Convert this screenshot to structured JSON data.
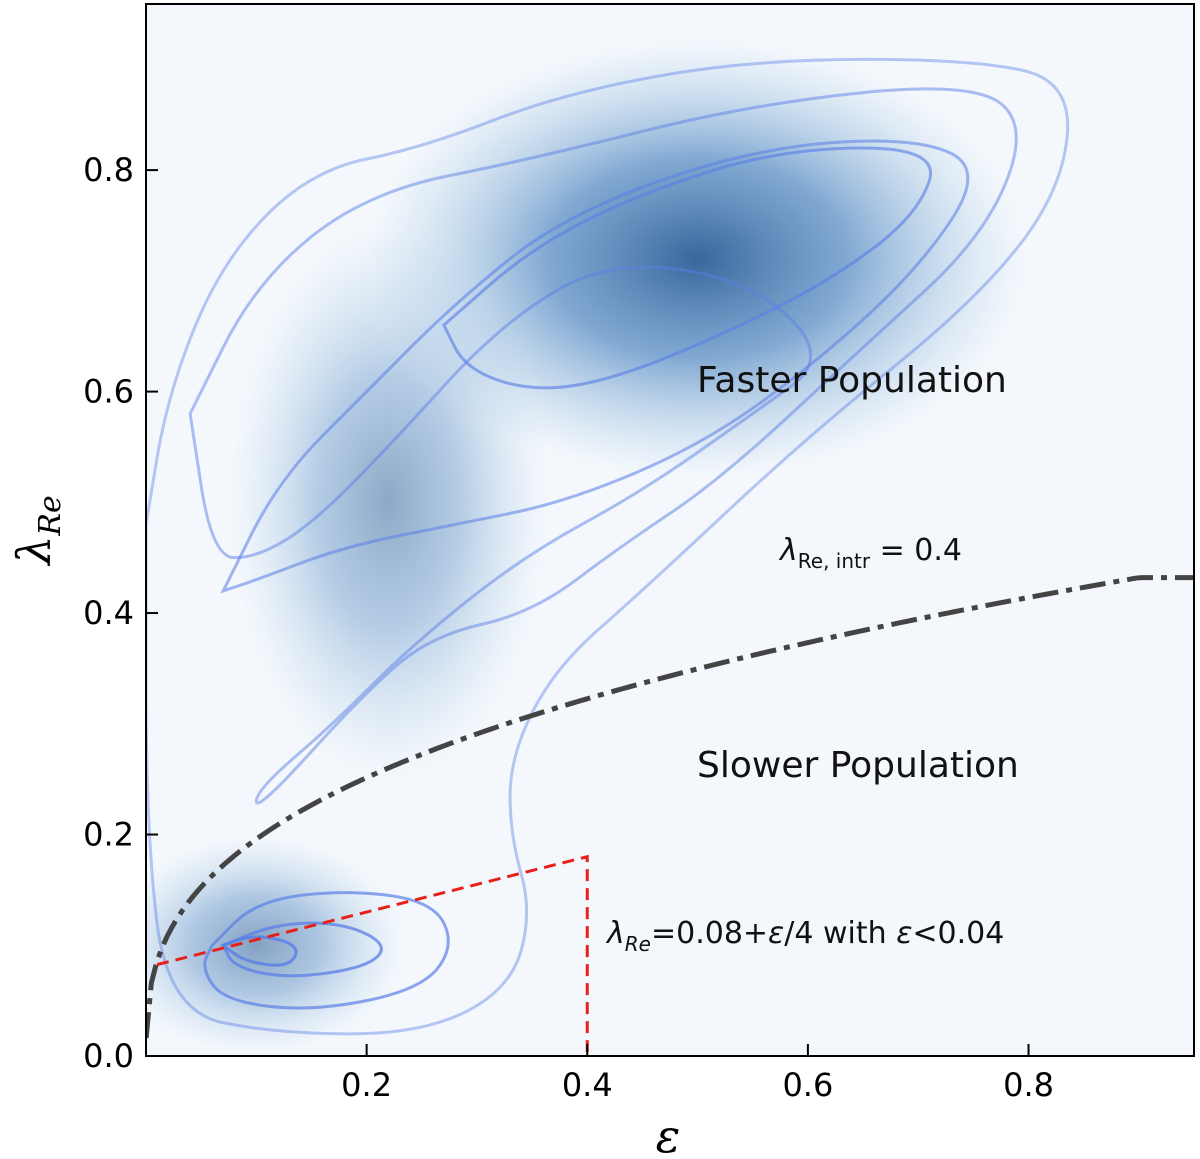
{
  "chart_data": {
    "type": "density",
    "xlabel": "ε",
    "ylabel_main": "λ",
    "ylabel_sub": "Re",
    "xlim": [
      0,
      0.95
    ],
    "ylim": [
      0,
      0.95
    ],
    "x_ticks": [
      0.2,
      0.4,
      0.6,
      0.8
    ],
    "x_tick_labels": [
      "0.2",
      "0.4",
      "0.6",
      "0.8"
    ],
    "y_ticks": [
      0.0,
      0.2,
      0.4,
      0.6,
      0.8
    ],
    "y_tick_labels": [
      "0.0",
      "0.2",
      "0.4",
      "0.6",
      "0.8"
    ],
    "density_peaks": [
      {
        "x": 0.5,
        "y": 0.72,
        "weight": 1.0
      },
      {
        "x": 0.22,
        "y": 0.5,
        "weight": 0.55
      },
      {
        "x": 0.1,
        "y": 0.1,
        "weight": 0.6
      }
    ],
    "contours": [
      {
        "level": 1,
        "points": [
          [
            0.0,
            0.48
          ],
          [
            0.02,
            0.6
          ],
          [
            0.07,
            0.72
          ],
          [
            0.15,
            0.8
          ],
          [
            0.25,
            0.82
          ],
          [
            0.38,
            0.87
          ],
          [
            0.55,
            0.9
          ],
          [
            0.75,
            0.9
          ],
          [
            0.84,
            0.88
          ],
          [
            0.83,
            0.78
          ],
          [
            0.75,
            0.68
          ],
          [
            0.6,
            0.56
          ],
          [
            0.45,
            0.42
          ],
          [
            0.37,
            0.35
          ],
          [
            0.33,
            0.27
          ],
          [
            0.33,
            0.2
          ],
          [
            0.35,
            0.13
          ],
          [
            0.33,
            0.06
          ],
          [
            0.25,
            0.02
          ],
          [
            0.12,
            0.02
          ],
          [
            0.02,
            0.04
          ],
          [
            0.0,
            0.2
          ],
          [
            0.0,
            0.48
          ]
        ]
      },
      {
        "level": 2,
        "points": [
          [
            0.04,
            0.58
          ],
          [
            0.1,
            0.7
          ],
          [
            0.2,
            0.78
          ],
          [
            0.35,
            0.81
          ],
          [
            0.55,
            0.86
          ],
          [
            0.75,
            0.88
          ],
          [
            0.8,
            0.84
          ],
          [
            0.76,
            0.74
          ],
          [
            0.65,
            0.64
          ],
          [
            0.52,
            0.52
          ],
          [
            0.43,
            0.46
          ],
          [
            0.35,
            0.4
          ],
          [
            0.26,
            0.38
          ],
          [
            0.2,
            0.33
          ],
          [
            0.1,
            0.22
          ],
          [
            0.1,
            0.24
          ],
          [
            0.17,
            0.3
          ],
          [
            0.24,
            0.37
          ],
          [
            0.34,
            0.45
          ],
          [
            0.45,
            0.51
          ],
          [
            0.55,
            0.58
          ],
          [
            0.62,
            0.63
          ],
          [
            0.55,
            0.7
          ],
          [
            0.42,
            0.72
          ],
          [
            0.32,
            0.66
          ],
          [
            0.22,
            0.55
          ],
          [
            0.15,
            0.48
          ],
          [
            0.1,
            0.45
          ],
          [
            0.06,
            0.45
          ],
          [
            0.04,
            0.58
          ]
        ]
      },
      {
        "level": 3,
        "points": [
          [
            0.07,
            0.42
          ],
          [
            0.12,
            0.52
          ],
          [
            0.2,
            0.6
          ],
          [
            0.28,
            0.68
          ],
          [
            0.38,
            0.76
          ],
          [
            0.55,
            0.82
          ],
          [
            0.7,
            0.83
          ],
          [
            0.76,
            0.8
          ],
          [
            0.7,
            0.71
          ],
          [
            0.6,
            0.62
          ],
          [
            0.5,
            0.55
          ],
          [
            0.38,
            0.5
          ],
          [
            0.28,
            0.48
          ],
          [
            0.18,
            0.46
          ],
          [
            0.1,
            0.43
          ],
          [
            0.07,
            0.42
          ]
        ]
      },
      {
        "level": 4,
        "points": [
          [
            0.27,
            0.66
          ],
          [
            0.35,
            0.73
          ],
          [
            0.45,
            0.78
          ],
          [
            0.58,
            0.82
          ],
          [
            0.72,
            0.82
          ],
          [
            0.7,
            0.76
          ],
          [
            0.62,
            0.7
          ],
          [
            0.52,
            0.65
          ],
          [
            0.42,
            0.61
          ],
          [
            0.35,
            0.6
          ],
          [
            0.29,
            0.62
          ],
          [
            0.27,
            0.66
          ]
        ]
      },
      {
        "level": 5,
        "points": [
          [
            0.06,
            0.1
          ],
          [
            0.1,
            0.14
          ],
          [
            0.18,
            0.15
          ],
          [
            0.26,
            0.14
          ],
          [
            0.28,
            0.1
          ],
          [
            0.25,
            0.06
          ],
          [
            0.15,
            0.04
          ],
          [
            0.07,
            0.05
          ],
          [
            0.05,
            0.08
          ],
          [
            0.06,
            0.1
          ]
        ]
      },
      {
        "level": 6,
        "points": [
          [
            0.07,
            0.1
          ],
          [
            0.12,
            0.12
          ],
          [
            0.18,
            0.12
          ],
          [
            0.22,
            0.1
          ],
          [
            0.2,
            0.08
          ],
          [
            0.13,
            0.07
          ],
          [
            0.08,
            0.08
          ],
          [
            0.07,
            0.1
          ]
        ]
      },
      {
        "level": 7,
        "points": [
          [
            0.07,
            0.1
          ],
          [
            0.1,
            0.11
          ],
          [
            0.14,
            0.1
          ],
          [
            0.13,
            0.08
          ],
          [
            0.09,
            0.085
          ],
          [
            0.07,
            0.1
          ]
        ]
      }
    ],
    "intrinsic_curve": {
      "label_main": "λ",
      "label_sub": "Re, intr",
      "label_value": " = 0.4",
      "value": 0.4
    },
    "slow_region": {
      "label_main": "λ",
      "label_sub": "Re",
      "label_rest_1": "=0.08+",
      "label_eps_1": "ε",
      "label_rest_2": "/4 with ",
      "label_eps_2": "ε",
      "label_rest_3": "<0.04",
      "x_end": 0.4,
      "intercept": 0.08,
      "slope": 0.25
    },
    "annotations": {
      "faster": "Faster Population",
      "slower": "Slower Population"
    }
  }
}
